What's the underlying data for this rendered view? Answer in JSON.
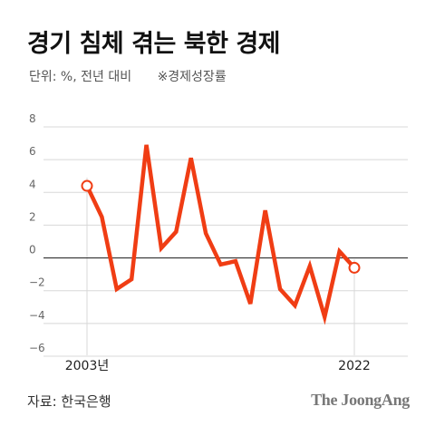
{
  "header": {
    "title": "경기 침체 겪는 북한 경제",
    "unit": "단위: %, 전년 대비",
    "note": "※경제성장률"
  },
  "footer": {
    "source": "자료: 한국은행",
    "brand": "The JoongAng"
  },
  "colors": {
    "line": "#f03d14",
    "grid": "#d8d8d8",
    "zero_line": "#333333",
    "marker_fill": "#ffffff"
  },
  "chart_data": {
    "type": "line",
    "title": "경기 침체 겪는 북한 경제",
    "xlabel": "",
    "ylabel": "",
    "x": [
      2003,
      2004,
      2005,
      2006,
      2007,
      2008,
      2009,
      2010,
      2011,
      2012,
      2013,
      2014,
      2015,
      2016,
      2017,
      2018,
      2019,
      2020,
      2021,
      2022
    ],
    "x_tick_labels": [
      "2003년",
      "2022"
    ],
    "series": [
      {
        "values": [
          4.4,
          2.5,
          -1.9,
          -1.3,
          6.9,
          0.6,
          1.6,
          6.1,
          1.5,
          -0.4,
          -0.2,
          -2.8,
          2.9,
          -1.9,
          -2.9,
          -0.5,
          -3.6,
          0.4,
          -0.6,
          null
        ],
        "highlight_endpoints": true
      }
    ],
    "y_ticks": [
      8,
      6,
      4,
      2,
      0,
      -2,
      -4,
      -6
    ],
    "y_tick_labels": [
      "8",
      "6",
      "4",
      "2",
      "0",
      "−2",
      "−4",
      "−6"
    ],
    "ylim": [
      -6,
      8
    ],
    "grid": true,
    "legend": "none"
  }
}
